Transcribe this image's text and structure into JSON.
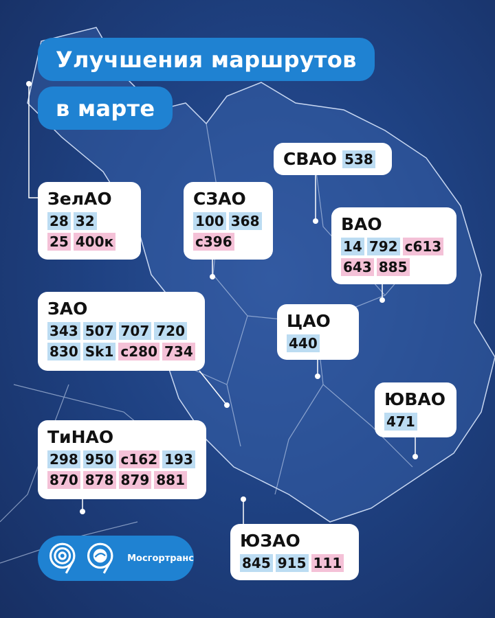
{
  "title": {
    "line1": "Улучшения маршрутов",
    "line2": "в марте"
  },
  "colors": {
    "background": "#1f4283",
    "title_pill": "#1f82d2",
    "existing_route_chip": "#bcdcf2",
    "new_route_chip": "#f4c1d7"
  },
  "districts": [
    {
      "name": "ЗелАО",
      "rows": [
        [
          {
            "t": "28",
            "c": "blue"
          },
          {
            "t": "32",
            "c": "blue"
          }
        ],
        [
          {
            "t": "25",
            "c": "pink"
          },
          {
            "t": "400к",
            "c": "pink"
          }
        ]
      ]
    },
    {
      "name": "СЗАО",
      "rows": [
        [
          {
            "t": "100",
            "c": "blue"
          },
          {
            "t": "368",
            "c": "blue"
          }
        ],
        [
          {
            "t": "с396",
            "c": "pink"
          }
        ]
      ]
    },
    {
      "name": "СВАО",
      "rows": [
        [
          {
            "t": "538",
            "c": "blue"
          }
        ]
      ]
    },
    {
      "name": "ВАО",
      "rows": [
        [
          {
            "t": "14",
            "c": "blue"
          },
          {
            "t": "792",
            "c": "blue"
          },
          {
            "t": "с613",
            "c": "pink"
          }
        ],
        [
          {
            "t": "643",
            "c": "pink"
          },
          {
            "t": "885",
            "c": "pink"
          }
        ]
      ]
    },
    {
      "name": "ЗАО",
      "rows": [
        [
          {
            "t": "343",
            "c": "blue"
          },
          {
            "t": "507",
            "c": "blue"
          },
          {
            "t": "707",
            "c": "blue"
          },
          {
            "t": "720",
            "c": "blue"
          }
        ],
        [
          {
            "t": "830",
            "c": "blue"
          },
          {
            "t": "Sk1",
            "c": "blue"
          },
          {
            "t": "с280",
            "c": "pink"
          },
          {
            "t": "734",
            "c": "pink"
          }
        ]
      ]
    },
    {
      "name": "ЦАО",
      "rows": [
        [
          {
            "t": "440",
            "c": "blue"
          }
        ]
      ]
    },
    {
      "name": "ЮВАО",
      "rows": [
        [
          {
            "t": "471",
            "c": "blue"
          }
        ]
      ]
    },
    {
      "name": "ТиНАО",
      "rows": [
        [
          {
            "t": "298",
            "c": "blue"
          },
          {
            "t": "950",
            "c": "blue"
          },
          {
            "t": "с162",
            "c": "pink"
          },
          {
            "t": "193",
            "c": "blue"
          }
        ],
        [
          {
            "t": "870",
            "c": "pink"
          },
          {
            "t": "878",
            "c": "pink"
          },
          {
            "t": "879",
            "c": "pink"
          },
          {
            "t": "881",
            "c": "pink"
          }
        ]
      ]
    },
    {
      "name": "ЮЗАО",
      "rows": [
        [
          {
            "t": "845",
            "c": "blue"
          },
          {
            "t": "915",
            "c": "blue"
          },
          {
            "t": "111",
            "c": "pink"
          }
        ]
      ]
    }
  ],
  "logo": {
    "text": "Мосгортранс"
  }
}
